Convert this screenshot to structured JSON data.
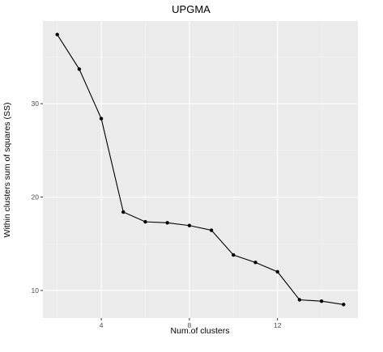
{
  "chart_data": {
    "type": "line",
    "title": "UPGMA",
    "xlabel": "Num.of clusters",
    "ylabel": "Within clusters sum of squares (SS)",
    "x": [
      2,
      3,
      4,
      5,
      6,
      7,
      8,
      9,
      10,
      11,
      12,
      13,
      14,
      15
    ],
    "series": [
      {
        "values": [
          37.4,
          33.7,
          28.4,
          18.4,
          17.35,
          17.25,
          16.95,
          16.45,
          13.8,
          13.0,
          12.0,
          9.0,
          8.85,
          8.5
        ]
      }
    ],
    "xticks": [
      4,
      8,
      12
    ],
    "yticks": [
      10,
      20,
      30
    ],
    "xlim": [
      1.35,
      15.65
    ],
    "ylim": [
      7.05,
      38.85
    ],
    "grid": true,
    "legend": "none",
    "colors": {
      "panel": "#ebebeb",
      "grid_major": "#ffffff",
      "grid_minor": "#f5f5f5",
      "line": "#000000",
      "point": "#000000"
    }
  }
}
